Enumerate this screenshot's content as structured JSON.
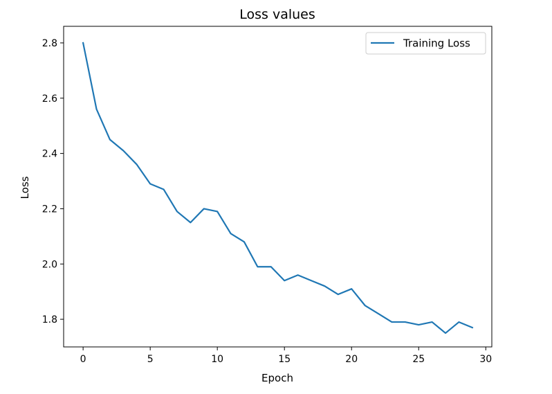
{
  "chart_data": {
    "type": "line",
    "title": "Loss values",
    "xlabel": "Epoch",
    "ylabel": "Loss",
    "xlim": [
      -1.45,
      30.45
    ],
    "ylim": [
      1.7,
      2.86
    ],
    "xticks": [
      0,
      5,
      10,
      15,
      20,
      25,
      30
    ],
    "xtick_labels": [
      "0",
      "5",
      "10",
      "15",
      "20",
      "25",
      "30"
    ],
    "yticks": [
      1.8,
      2.0,
      2.2,
      2.4,
      2.6,
      2.8
    ],
    "ytick_labels": [
      "1.8",
      "2.0",
      "2.2",
      "2.4",
      "2.6",
      "2.8"
    ],
    "grid": false,
    "legend_position": "top-right",
    "series": [
      {
        "name": "Training Loss",
        "color": "#1f77b4",
        "x": [
          0,
          1,
          2,
          3,
          4,
          5,
          6,
          7,
          8,
          9,
          10,
          11,
          12,
          13,
          14,
          15,
          16,
          17,
          18,
          19,
          20,
          21,
          22,
          23,
          24,
          25,
          26,
          27,
          28,
          29
        ],
        "y": [
          2.8,
          2.56,
          2.45,
          2.41,
          2.36,
          2.29,
          2.27,
          2.19,
          2.15,
          2.2,
          2.19,
          2.11,
          2.08,
          1.99,
          1.99,
          1.94,
          1.96,
          1.94,
          1.92,
          1.89,
          1.91,
          1.85,
          1.82,
          1.79,
          1.79,
          1.78,
          1.79,
          1.75,
          1.79,
          1.77
        ]
      }
    ]
  }
}
